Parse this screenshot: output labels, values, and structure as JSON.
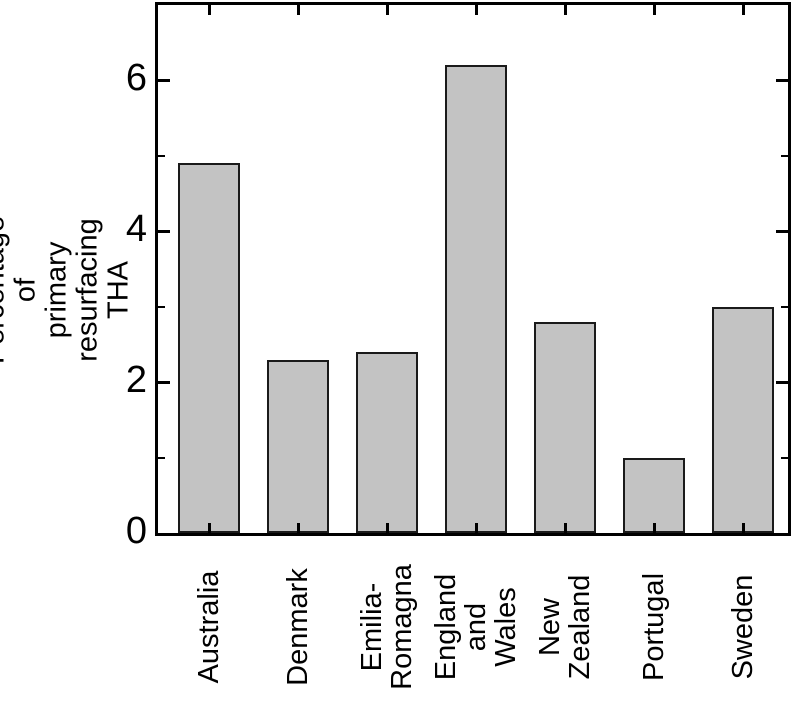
{
  "chart_data": {
    "type": "bar",
    "title": "",
    "categories": [
      "Australia",
      "Denmark",
      "Emilia-\nRomagna",
      "England\nand Wales",
      "New\nZealand",
      "Portugal",
      "Sweden"
    ],
    "values": [
      4.9,
      2.3,
      2.4,
      6.2,
      2.8,
      1.0,
      3.0
    ],
    "xlabel": "",
    "ylabel": "Percentage of\nprimary resurfacing THA",
    "ylim": [
      0,
      7
    ],
    "ytick_labels": [
      "0",
      "2",
      "4",
      "6"
    ],
    "yticks_major": [
      0,
      2,
      4,
      6
    ],
    "yticks_minor": [
      1,
      3,
      5
    ],
    "grid": false,
    "legend": null,
    "layout_hints": {
      "tick_direction": "in",
      "box": "all-four-sides",
      "x_labels_rotation_deg": 90
    },
    "colors": {
      "bar_fill": "#c3c3c3",
      "bar_border": "#1a1a1a",
      "axis": "#000000",
      "text": "#000000",
      "background": "#ffffff"
    }
  }
}
